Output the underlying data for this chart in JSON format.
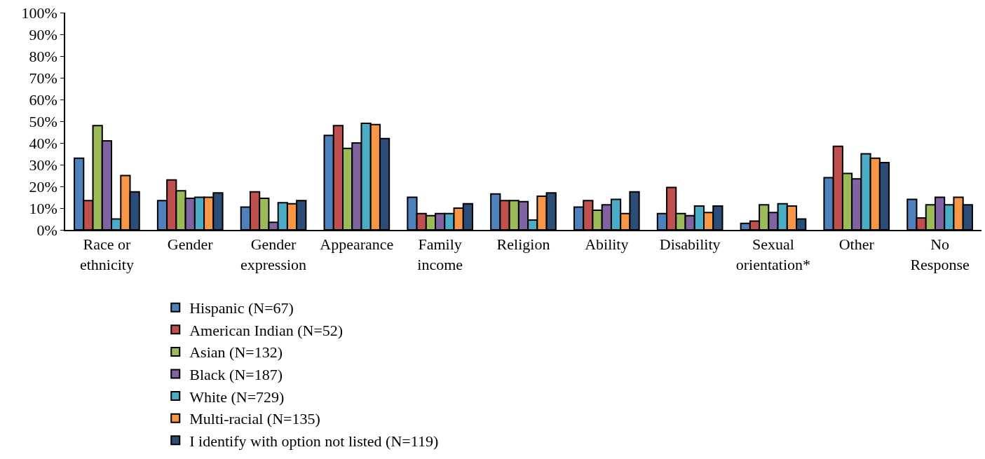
{
  "chart_data": {
    "type": "bar",
    "categories": [
      "Race or ethnicity",
      "Gender",
      "Gender expression",
      "Appearance",
      "Family income",
      "Religion",
      "Ability",
      "Disability",
      "Sexual orientation*",
      "Other",
      "No Response"
    ],
    "series": [
      {
        "name": "Hispanic (N=67)",
        "color": "#4f81bd",
        "values": [
          33,
          13.5,
          10.5,
          43.5,
          15,
          16.5,
          10.5,
          7.5,
          3,
          24,
          14
        ]
      },
      {
        "name": "American Indian (N=52)",
        "color": "#c0504d",
        "values": [
          13.5,
          23,
          17.5,
          48,
          7.5,
          13.5,
          13.5,
          19.5,
          4,
          38.5,
          5.5
        ]
      },
      {
        "name": "Asian (N=132)",
        "color": "#9bbb59",
        "values": [
          48,
          18,
          14.5,
          37.5,
          6.5,
          13.5,
          9,
          7.5,
          11.5,
          26,
          11.5
        ]
      },
      {
        "name": "Black (N=187)",
        "color": "#8064a2",
        "values": [
          41,
          14.5,
          3.5,
          40,
          7.5,
          13,
          11.5,
          6.5,
          8,
          23.5,
          15
        ]
      },
      {
        "name": "White (N=729)",
        "color": "#4bacc6",
        "values": [
          5,
          15,
          12.5,
          49,
          7.5,
          4.5,
          14,
          11,
          12,
          35,
          11.5
        ]
      },
      {
        "name": "Multi-racial (N=135)",
        "color": "#f79646",
        "values": [
          25,
          15,
          12,
          48.5,
          10,
          15.5,
          7.5,
          8,
          11,
          33,
          15
        ]
      },
      {
        "name": "I identify with option not listed (N=119)",
        "color": "#2c4d75",
        "values": [
          17.5,
          17,
          13.5,
          42,
          12,
          17,
          17.5,
          11,
          5,
          31,
          11.5
        ]
      }
    ],
    "ylim": [
      0,
      100
    ],
    "yticks": [
      {
        "value": 0,
        "label": "0%"
      },
      {
        "value": 10,
        "label": "10%"
      },
      {
        "value": 20,
        "label": "20%"
      },
      {
        "value": 30,
        "label": "30%"
      },
      {
        "value": 40,
        "label": "40%"
      },
      {
        "value": 50,
        "label": "50%"
      },
      {
        "value": 60,
        "label": "60%"
      },
      {
        "value": 70,
        "label": "70%"
      },
      {
        "value": 80,
        "label": "80%"
      },
      {
        "value": 90,
        "label": "90%"
      },
      {
        "value": 100,
        "label": "100%"
      }
    ],
    "grid": false,
    "legend": "bottom"
  }
}
